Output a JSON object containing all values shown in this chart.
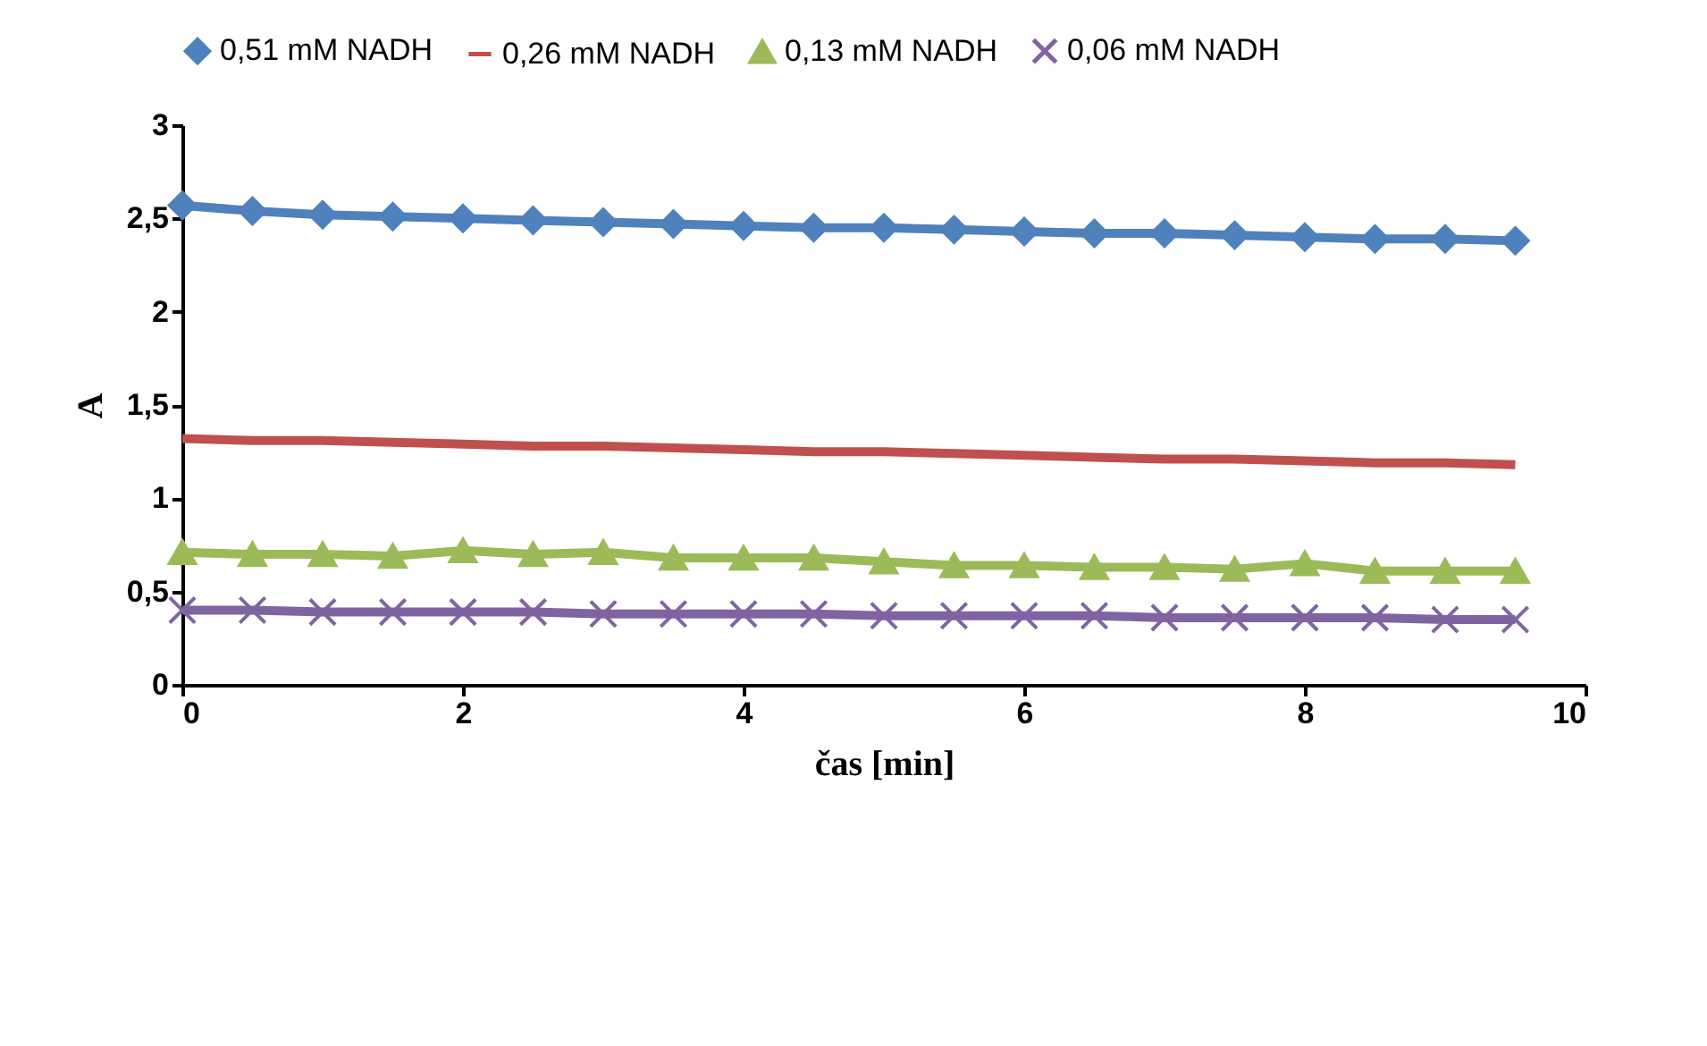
{
  "chart_data": {
    "type": "line",
    "xlabel": "čas [min]",
    "ylabel": "A",
    "x": [
      0,
      0.5,
      1,
      1.5,
      2,
      2.5,
      3,
      3.5,
      4,
      4.5,
      5,
      5.5,
      6,
      6.5,
      7,
      7.5,
      8,
      8.5,
      9,
      9.5
    ],
    "series": [
      {
        "name": "0,51 mM NADH",
        "color": "#4f81bd",
        "marker": "diamond",
        "values": [
          2.57,
          2.54,
          2.52,
          2.51,
          2.5,
          2.49,
          2.48,
          2.47,
          2.46,
          2.45,
          2.45,
          2.44,
          2.43,
          2.42,
          2.42,
          2.41,
          2.4,
          2.39,
          2.39,
          2.38
        ]
      },
      {
        "name": "0,26 mM NADH",
        "color": "#c0504d",
        "marker": "none",
        "values": [
          1.32,
          1.31,
          1.31,
          1.3,
          1.29,
          1.28,
          1.28,
          1.27,
          1.26,
          1.25,
          1.25,
          1.24,
          1.23,
          1.22,
          1.21,
          1.21,
          1.2,
          1.19,
          1.19,
          1.18
        ]
      },
      {
        "name": "0,13 mM NADH",
        "color": "#9bbb59",
        "marker": "triangle",
        "values": [
          0.71,
          0.7,
          0.7,
          0.69,
          0.72,
          0.7,
          0.71,
          0.68,
          0.68,
          0.68,
          0.66,
          0.64,
          0.64,
          0.63,
          0.63,
          0.62,
          0.65,
          0.61,
          0.61,
          0.61
        ]
      },
      {
        "name": "0,06 mM NADH",
        "color": "#8064a2",
        "marker": "cross",
        "values": [
          0.4,
          0.4,
          0.39,
          0.39,
          0.39,
          0.39,
          0.38,
          0.38,
          0.38,
          0.38,
          0.37,
          0.37,
          0.37,
          0.37,
          0.36,
          0.36,
          0.36,
          0.36,
          0.35,
          0.35
        ]
      }
    ],
    "xlim": [
      0,
      10
    ],
    "xticks": [
      0,
      2,
      4,
      6,
      8,
      10
    ],
    "ylim": [
      0,
      3
    ],
    "yticks": [
      0,
      {
        "value": 0.5,
        "label": "0,5"
      },
      1,
      {
        "value": 1.5,
        "label": "1,5"
      },
      2,
      {
        "value": 2.5,
        "label": "2,5"
      },
      3
    ],
    "grid": false,
    "legend": "top"
  }
}
